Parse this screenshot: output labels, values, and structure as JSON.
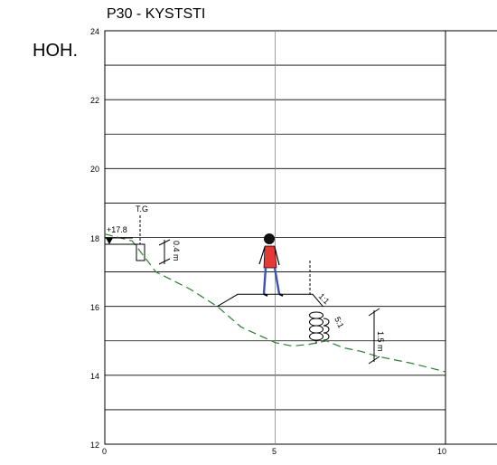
{
  "drawing": {
    "title": "P30 - KYSTSTI",
    "vertical_label": "HOH."
  },
  "axes": {
    "y_ticks": [
      "24",
      "22",
      "20",
      "18",
      "16",
      "14",
      "12"
    ],
    "x_ticks": [
      "0",
      "5",
      "10"
    ],
    "x_range": [
      0,
      10
    ],
    "y_range": [
      12,
      24
    ]
  },
  "annotations": {
    "level_marker": "+17.8",
    "tg_label": "T.G",
    "height_04": "0.4 m",
    "slope_11": "1:1",
    "slope_51": "5:1",
    "height_15": "1.5 m"
  },
  "colors": {
    "grid": "#000000",
    "terrain_line": "#2e7d32",
    "person_shirt": "#e53935",
    "person_pants": "#3f51b5"
  },
  "chart_data": {
    "type": "line",
    "series": [
      {
        "x": [
          0.0,
          0.8,
          1.5,
          2.5,
          3.3,
          4.0,
          5.0,
          5.5,
          6.0,
          6.5,
          7.0,
          7.5,
          8.0,
          9.0,
          10.0
        ],
        "y": [
          18.1,
          17.9,
          17.0,
          16.5,
          16.0,
          15.4,
          14.95,
          14.85,
          14.9,
          15.0,
          14.8,
          14.7,
          14.55,
          14.35,
          14.1
        ]
      }
    ],
    "structures": {
      "path_platform": {
        "x": [
          3.3,
          3.9,
          6.1,
          6.4
        ],
        "y": [
          16.0,
          16.35,
          16.35,
          16.0
        ]
      },
      "stone_block": {
        "x": 1.0,
        "y_top": 17.8,
        "y_bottom": 17.3
      }
    }
  }
}
